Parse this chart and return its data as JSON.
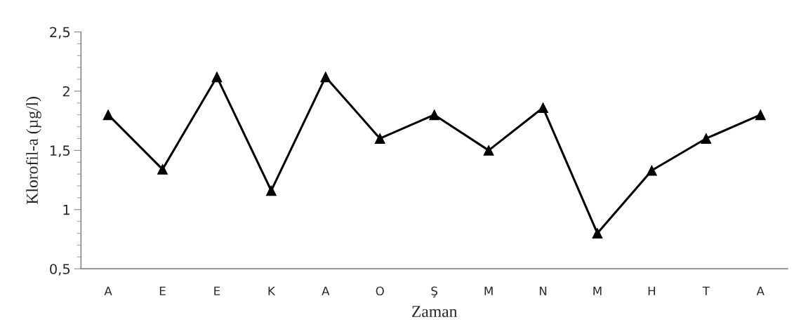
{
  "chart_data": {
    "type": "line",
    "xlabel": "Zaman",
    "ylabel": "Klorofil-a (µg/l)",
    "categories": [
      "A",
      "E",
      "E",
      "K",
      "A",
      "O",
      "Ş",
      "M",
      "N",
      "M",
      "H",
      "T",
      "A"
    ],
    "series": [
      {
        "color": "#000000",
        "values": [
          1.8,
          1.34,
          2.12,
          1.16,
          2.12,
          1.6,
          1.8,
          1.5,
          1.86,
          0.8,
          1.33,
          1.6,
          1.8
        ]
      }
    ],
    "ylim": [
      0.5,
      2.5
    ],
    "yticks": [
      {
        "value": 0.5,
        "label": "0,5"
      },
      {
        "value": 0.6,
        "label": null
      },
      {
        "value": 0.7,
        "label": null
      },
      {
        "value": 0.8,
        "label": null
      },
      {
        "value": 0.9,
        "label": null
      },
      1,
      {
        "value": 1.1,
        "label": null
      },
      {
        "value": 1.2,
        "label": null
      },
      {
        "value": 1.3,
        "label": null
      },
      {
        "value": 1.4,
        "label": null
      },
      {
        "value": 1.5,
        "label": "1,5"
      },
      {
        "value": 1.6,
        "label": null
      },
      {
        "value": 1.7,
        "label": null
      },
      {
        "value": 1.8,
        "label": null
      },
      {
        "value": 1.9,
        "label": null
      },
      2,
      {
        "value": 2.1,
        "label": null
      },
      {
        "value": 2.2,
        "label": null
      },
      {
        "value": 2.3,
        "label": null
      },
      {
        "value": 2.4,
        "label": null
      },
      {
        "value": 2.5,
        "label": "2,5"
      }
    ],
    "marker": "triangle",
    "line_style": "solid",
    "grid": false,
    "legend": false
  }
}
